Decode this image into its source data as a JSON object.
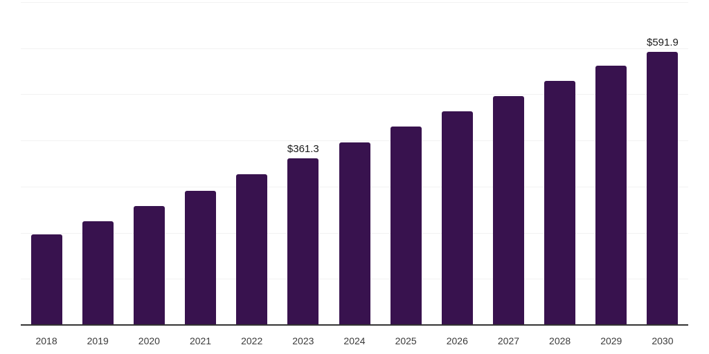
{
  "chart": {
    "background_color": "#ffffff",
    "bar_color": "#38124e",
    "grid_color": "#f2f2f2",
    "axis_color": "#333333",
    "value_label_color": "#1a1a1a",
    "tick_label_color": "#3a3a3a"
  },
  "chart_data": {
    "type": "bar",
    "title": "",
    "xlabel": "",
    "ylabel": "",
    "categories": [
      "2018",
      "2019",
      "2020",
      "2021",
      "2022",
      "2023",
      "2024",
      "2025",
      "2026",
      "2027",
      "2028",
      "2029",
      "2030"
    ],
    "values": [
      196.6,
      225.4,
      257.4,
      290.4,
      326.4,
      361.3,
      395.1,
      429.7,
      462.6,
      496.1,
      529.4,
      562.4,
      591.9
    ],
    "data_labels": [
      {
        "category": "2023",
        "text": "$361.3"
      },
      {
        "category": "2030",
        "text": "$591.9"
      }
    ],
    "ylim": [
      0,
      700
    ],
    "grid_step": 100,
    "grid": true,
    "y_axis_labels_visible": false,
    "legend_position": "none"
  }
}
